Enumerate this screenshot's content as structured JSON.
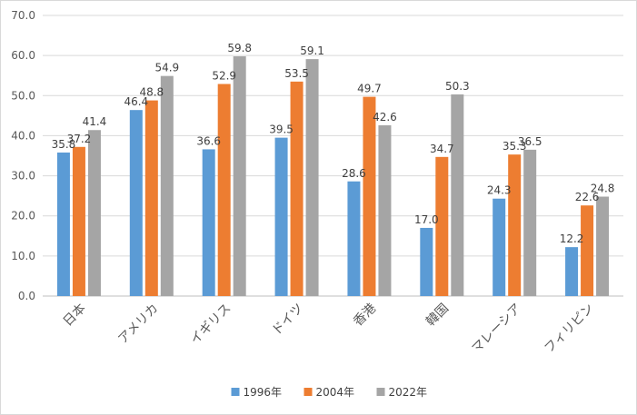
{
  "chart_data": {
    "type": "bar",
    "title": "",
    "xlabel": "",
    "ylabel": "",
    "ylim": [
      0,
      70
    ],
    "yticks": [
      "0.0",
      "10.0",
      "20.0",
      "30.0",
      "40.0",
      "50.0",
      "60.0",
      "70.0"
    ],
    "grid": true,
    "legend_position": "bottom",
    "categories": [
      "日本",
      "アメリカ",
      "イギリス",
      "ドイツ",
      "香港",
      "韓国",
      "マレーシア",
      "フィリピン"
    ],
    "series": [
      {
        "name": "1996年",
        "color": "#5b9bd5",
        "values": [
          35.8,
          46.4,
          36.6,
          39.5,
          28.6,
          17.0,
          24.3,
          12.2
        ]
      },
      {
        "name": "2004年",
        "color": "#ed7d31",
        "values": [
          37.2,
          48.8,
          52.9,
          53.5,
          49.7,
          34.7,
          35.3,
          22.6
        ]
      },
      {
        "name": "2022年",
        "color": "#a5a5a5",
        "values": [
          41.4,
          54.9,
          59.8,
          59.1,
          42.6,
          50.3,
          36.5,
          24.8
        ]
      }
    ]
  }
}
